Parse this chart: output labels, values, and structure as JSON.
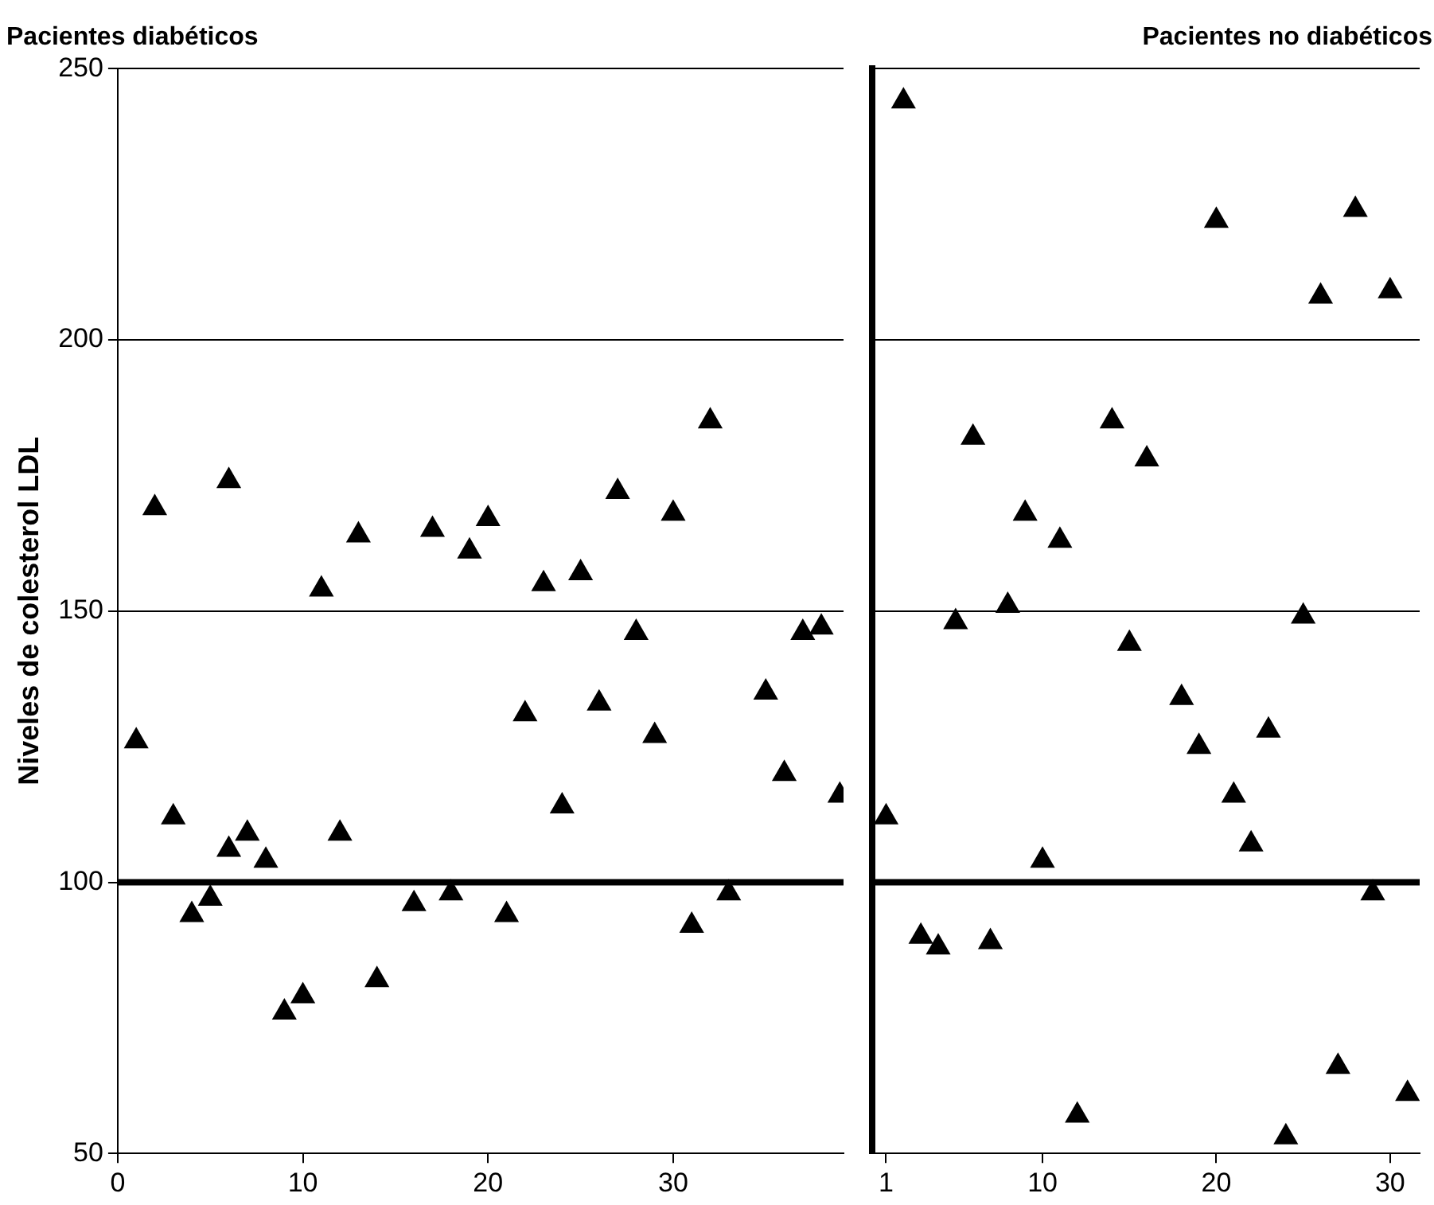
{
  "chart_data": [
    {
      "type": "scatter",
      "title": "Pacientes diabéticos",
      "ylabel": "Niveles de colesterol LDL",
      "series": [
        {
          "color": "#000000",
          "x": [
            1,
            2,
            3,
            4,
            5,
            6,
            6,
            7,
            8,
            9,
            10,
            11,
            12,
            13,
            14,
            16,
            17,
            18,
            19,
            20,
            21,
            22,
            23,
            24,
            25,
            26,
            27,
            28,
            29,
            30,
            31,
            32,
            33,
            35,
            36,
            37,
            38,
            39
          ],
          "values": [
            126,
            169,
            112,
            94,
            97,
            174,
            106,
            109,
            104,
            76,
            79,
            154,
            109,
            164,
            82,
            96,
            165,
            98,
            161,
            167,
            94,
            131,
            155,
            114,
            157,
            133,
            172,
            146,
            127,
            168,
            92,
            185,
            98,
            135,
            120,
            146,
            147,
            116
          ]
        }
      ],
      "xlim": [
        0,
        39.2
      ],
      "xticks": [
        0,
        10,
        20,
        30
      ],
      "ylim": [
        50,
        250
      ],
      "yticks": [
        50,
        100,
        150,
        200,
        250
      ],
      "ref_lines": [
        {
          "axis": "y",
          "value": 100,
          "color": "#000000"
        }
      ],
      "grid": "y",
      "legend": false,
      "marker": "triangle"
    },
    {
      "type": "scatter",
      "title": "Pacientes no diabéticos",
      "series": [
        {
          "color": "#000000",
          "x": [
            1,
            2,
            3,
            4,
            5,
            6,
            7,
            8,
            9,
            10,
            11,
            12,
            14,
            15,
            16,
            18,
            19,
            20,
            21,
            22,
            23,
            24,
            25,
            26,
            27,
            28,
            29,
            30,
            31
          ],
          "values": [
            112,
            244,
            90,
            88,
            148,
            182,
            89,
            151,
            168,
            104,
            163,
            57,
            185,
            144,
            178,
            134,
            125,
            222,
            116,
            107,
            128,
            53,
            149,
            208,
            66,
            224,
            98,
            209,
            61
          ]
        }
      ],
      "xlim": [
        0.2,
        31.7
      ],
      "xticks": [
        1,
        10,
        20,
        30
      ],
      "ylim": [
        50,
        250
      ],
      "yticks": [
        50,
        100,
        150,
        200,
        250
      ],
      "ref_lines": [
        {
          "axis": "y",
          "value": 100,
          "color": "#000000"
        }
      ],
      "grid": "y",
      "legend": false,
      "marker": "triangle",
      "tick_labels": "x"
    }
  ]
}
